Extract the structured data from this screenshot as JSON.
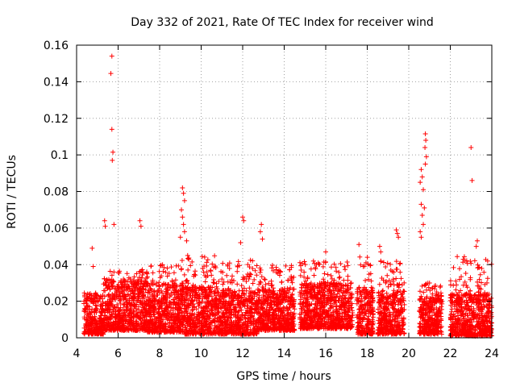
{
  "chart_data": {
    "type": "scatter",
    "title": "Day 332 of 2021, Rate Of TEC Index for receiver wind",
    "xlabel": "GPS time / hours",
    "ylabel": "ROTI / TECUs",
    "xlim": [
      4,
      24
    ],
    "ylim": [
      0,
      0.16
    ],
    "x_ticks": [
      "4",
      "6",
      "8",
      "10",
      "12",
      "14",
      "16",
      "18",
      "20",
      "22",
      "24"
    ],
    "y_ticks": [
      "0",
      "0.02",
      "0.04",
      "0.06",
      "0.08",
      "0.1",
      "0.12",
      "0.14",
      "0.16"
    ],
    "grid": true,
    "marker": "plus",
    "series_color": "#ff0000",
    "dense_segments": [
      {
        "x": [
          4.35,
          5.3
        ],
        "y_min": 0.002,
        "y_max": 0.025
      },
      {
        "x": [
          5.3,
          7.4
        ],
        "y_min": 0.004,
        "y_max": 0.032
      },
      {
        "x": [
          7.4,
          9.2
        ],
        "y_min": 0.003,
        "y_max": 0.03
      },
      {
        "x": [
          9.2,
          11.0
        ],
        "y_min": 0.002,
        "y_max": 0.028
      },
      {
        "x": [
          11.0,
          12.7
        ],
        "y_min": 0.002,
        "y_max": 0.026
      },
      {
        "x": [
          12.7,
          14.5
        ],
        "y_min": 0.004,
        "y_max": 0.027
      },
      {
        "x": [
          14.75,
          17.3
        ],
        "y_min": 0.005,
        "y_max": 0.03
      },
      {
        "x": [
          17.5,
          18.3
        ],
        "y_min": 0.002,
        "y_max": 0.028
      },
      {
        "x": [
          18.5,
          19.8
        ],
        "y_min": 0.002,
        "y_max": 0.026
      },
      {
        "x": [
          20.5,
          21.6
        ],
        "y_min": 0.002,
        "y_max": 0.022
      },
      {
        "x": [
          22.0,
          24.0
        ],
        "y_min": 0.001,
        "y_max": 0.024
      }
    ],
    "spikes": [
      [
        5.7,
        0.154
      ],
      [
        5.65,
        0.1445
      ],
      [
        5.7,
        0.114
      ],
      [
        5.75,
        0.1015
      ],
      [
        5.72,
        0.097
      ],
      [
        5.35,
        0.064
      ],
      [
        5.38,
        0.061
      ],
      [
        5.8,
        0.062
      ],
      [
        7.05,
        0.064
      ],
      [
        7.1,
        0.061
      ],
      [
        9.1,
        0.082
      ],
      [
        9.15,
        0.079
      ],
      [
        9.2,
        0.075
      ],
      [
        9.05,
        0.07
      ],
      [
        9.1,
        0.066
      ],
      [
        9.15,
        0.062
      ],
      [
        9.2,
        0.058
      ],
      [
        9.0,
        0.055
      ],
      [
        9.3,
        0.053
      ],
      [
        9.35,
        0.045
      ],
      [
        9.4,
        0.043
      ],
      [
        12.0,
        0.066
      ],
      [
        12.05,
        0.064
      ],
      [
        11.9,
        0.052
      ],
      [
        12.9,
        0.062
      ],
      [
        12.85,
        0.058
      ],
      [
        12.95,
        0.054
      ],
      [
        4.75,
        0.049
      ],
      [
        4.8,
        0.039
      ],
      [
        16.0,
        0.047
      ],
      [
        17.6,
        0.051
      ],
      [
        18.6,
        0.05
      ],
      [
        18.65,
        0.047
      ],
      [
        19.4,
        0.059
      ],
      [
        19.45,
        0.057
      ],
      [
        19.5,
        0.055
      ],
      [
        20.6,
        0.092
      ],
      [
        20.65,
        0.088
      ],
      [
        20.55,
        0.085
      ],
      [
        20.7,
        0.081
      ],
      [
        20.6,
        0.073
      ],
      [
        20.75,
        0.071
      ],
      [
        20.65,
        0.067
      ],
      [
        20.7,
        0.062
      ],
      [
        20.55,
        0.058
      ],
      [
        20.6,
        0.055
      ],
      [
        20.8,
        0.1115
      ],
      [
        20.82,
        0.108
      ],
      [
        20.78,
        0.104
      ],
      [
        20.85,
        0.099
      ],
      [
        20.8,
        0.095
      ],
      [
        23.0,
        0.104
      ],
      [
        23.05,
        0.086
      ],
      [
        23.3,
        0.053
      ],
      [
        23.25,
        0.05
      ],
      [
        23.8,
        0.042
      ],
      [
        21.0,
        0.03
      ],
      [
        22.1,
        0.019
      ]
    ],
    "cluster_caps": [
      {
        "x": [
          5.3,
          6.9
        ],
        "y_max": 0.037
      },
      {
        "x": [
          7.0,
          9.0
        ],
        "y_max": 0.04
      },
      {
        "x": [
          9.0,
          11.0
        ],
        "y_max": 0.045
      },
      {
        "x": [
          11.0,
          12.7
        ],
        "y_max": 0.043
      },
      {
        "x": [
          12.7,
          14.5
        ],
        "y_max": 0.04
      },
      {
        "x": [
          14.75,
          17.3
        ],
        "y_max": 0.042
      },
      {
        "x": [
          17.5,
          18.3
        ],
        "y_max": 0.046
      },
      {
        "x": [
          18.5,
          19.8
        ],
        "y_max": 0.042
      },
      {
        "x": [
          20.5,
          21.6
        ],
        "y_max": 0.03
      },
      {
        "x": [
          22.0,
          24.0
        ],
        "y_max": 0.045
      }
    ]
  }
}
